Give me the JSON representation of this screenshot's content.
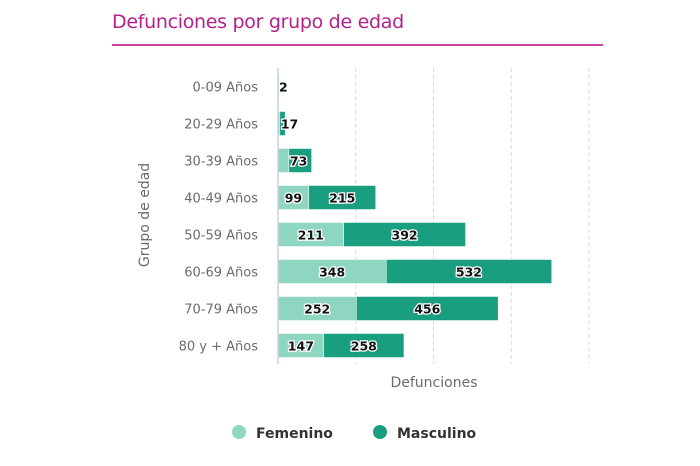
{
  "chart_data": {
    "type": "bar",
    "orientation": "horizontal",
    "stacked": true,
    "title": "Defunciones por grupo de edad",
    "xlabel": "Defunciones",
    "ylabel": "Grupo de edad",
    "xlim": [
      0,
      1000
    ],
    "x_gridlines": [
      250,
      500,
      750,
      1000
    ],
    "grid": true,
    "legend_position": "bottom",
    "categories": [
      "0-09 Años",
      "20-29 Años",
      "30-39 Años",
      "40-49 Años",
      "50-59 Años",
      "60-69 Años",
      "70-79 Años",
      "80 y + Años"
    ],
    "series": [
      {
        "name": "Femenino",
        "color": "#8fd6c2",
        "values": [
          0,
          6,
          35,
          99,
          211,
          348,
          252,
          147
        ],
        "labels": [
          "",
          "",
          "",
          "99",
          "211",
          "348",
          "252",
          "147"
        ]
      },
      {
        "name": "Masculino",
        "color": "#1a9e80",
        "values": [
          2,
          17,
          73,
          215,
          392,
          532,
          456,
          258
        ],
        "labels": [
          "2",
          "17",
          "73",
          "215",
          "392",
          "532",
          "456",
          "258"
        ]
      }
    ]
  }
}
